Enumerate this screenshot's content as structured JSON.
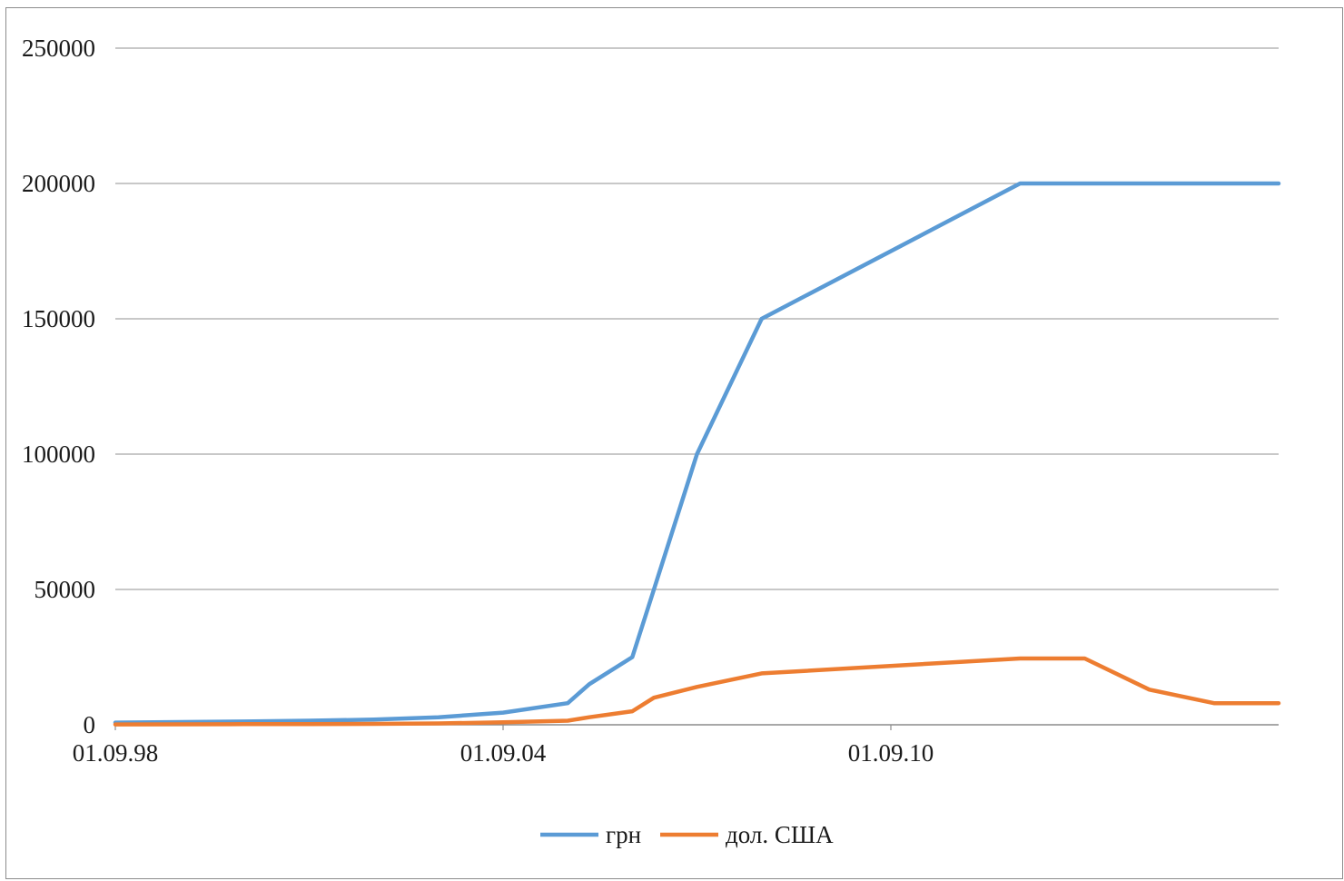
{
  "chart_data": {
    "type": "line",
    "title": "",
    "xlabel": "",
    "ylabel": "",
    "ylim": [
      0,
      250000
    ],
    "yticks": [
      "0",
      "50000",
      "100000",
      "150000",
      "200000",
      "250000"
    ],
    "xtick_labels": [
      "01.09.98",
      "01.09.04",
      "01.09.10"
    ],
    "x": [
      "01.09.98",
      "01.09.99",
      "01.09.00",
      "01.09.01",
      "01.09.02",
      "01.09.03",
      "01.09.04",
      "01.09.05",
      "01.01.06",
      "01.09.06",
      "01.01.07",
      "01.09.07",
      "01.09.08",
      "01.09.12",
      "01.09.13",
      "01.09.14",
      "01.09.15",
      "01.09.16"
    ],
    "grid": true,
    "legend_position": "bottom",
    "series": [
      {
        "name": "грн",
        "color": "#5b9bd5",
        "values": [
          800,
          1000,
          1200,
          1500,
          1900,
          2800,
          4500,
          8000,
          15000,
          25000,
          50000,
          100000,
          150000,
          200000,
          200000,
          200000,
          200000,
          200000
        ]
      },
      {
        "name": "дол. США",
        "color": "#ed7d31",
        "values": [
          150,
          180,
          220,
          280,
          350,
          500,
          900,
          1500,
          2800,
          5000,
          10000,
          14000,
          19000,
          24500,
          24500,
          13000,
          8000,
          8000
        ]
      }
    ]
  }
}
